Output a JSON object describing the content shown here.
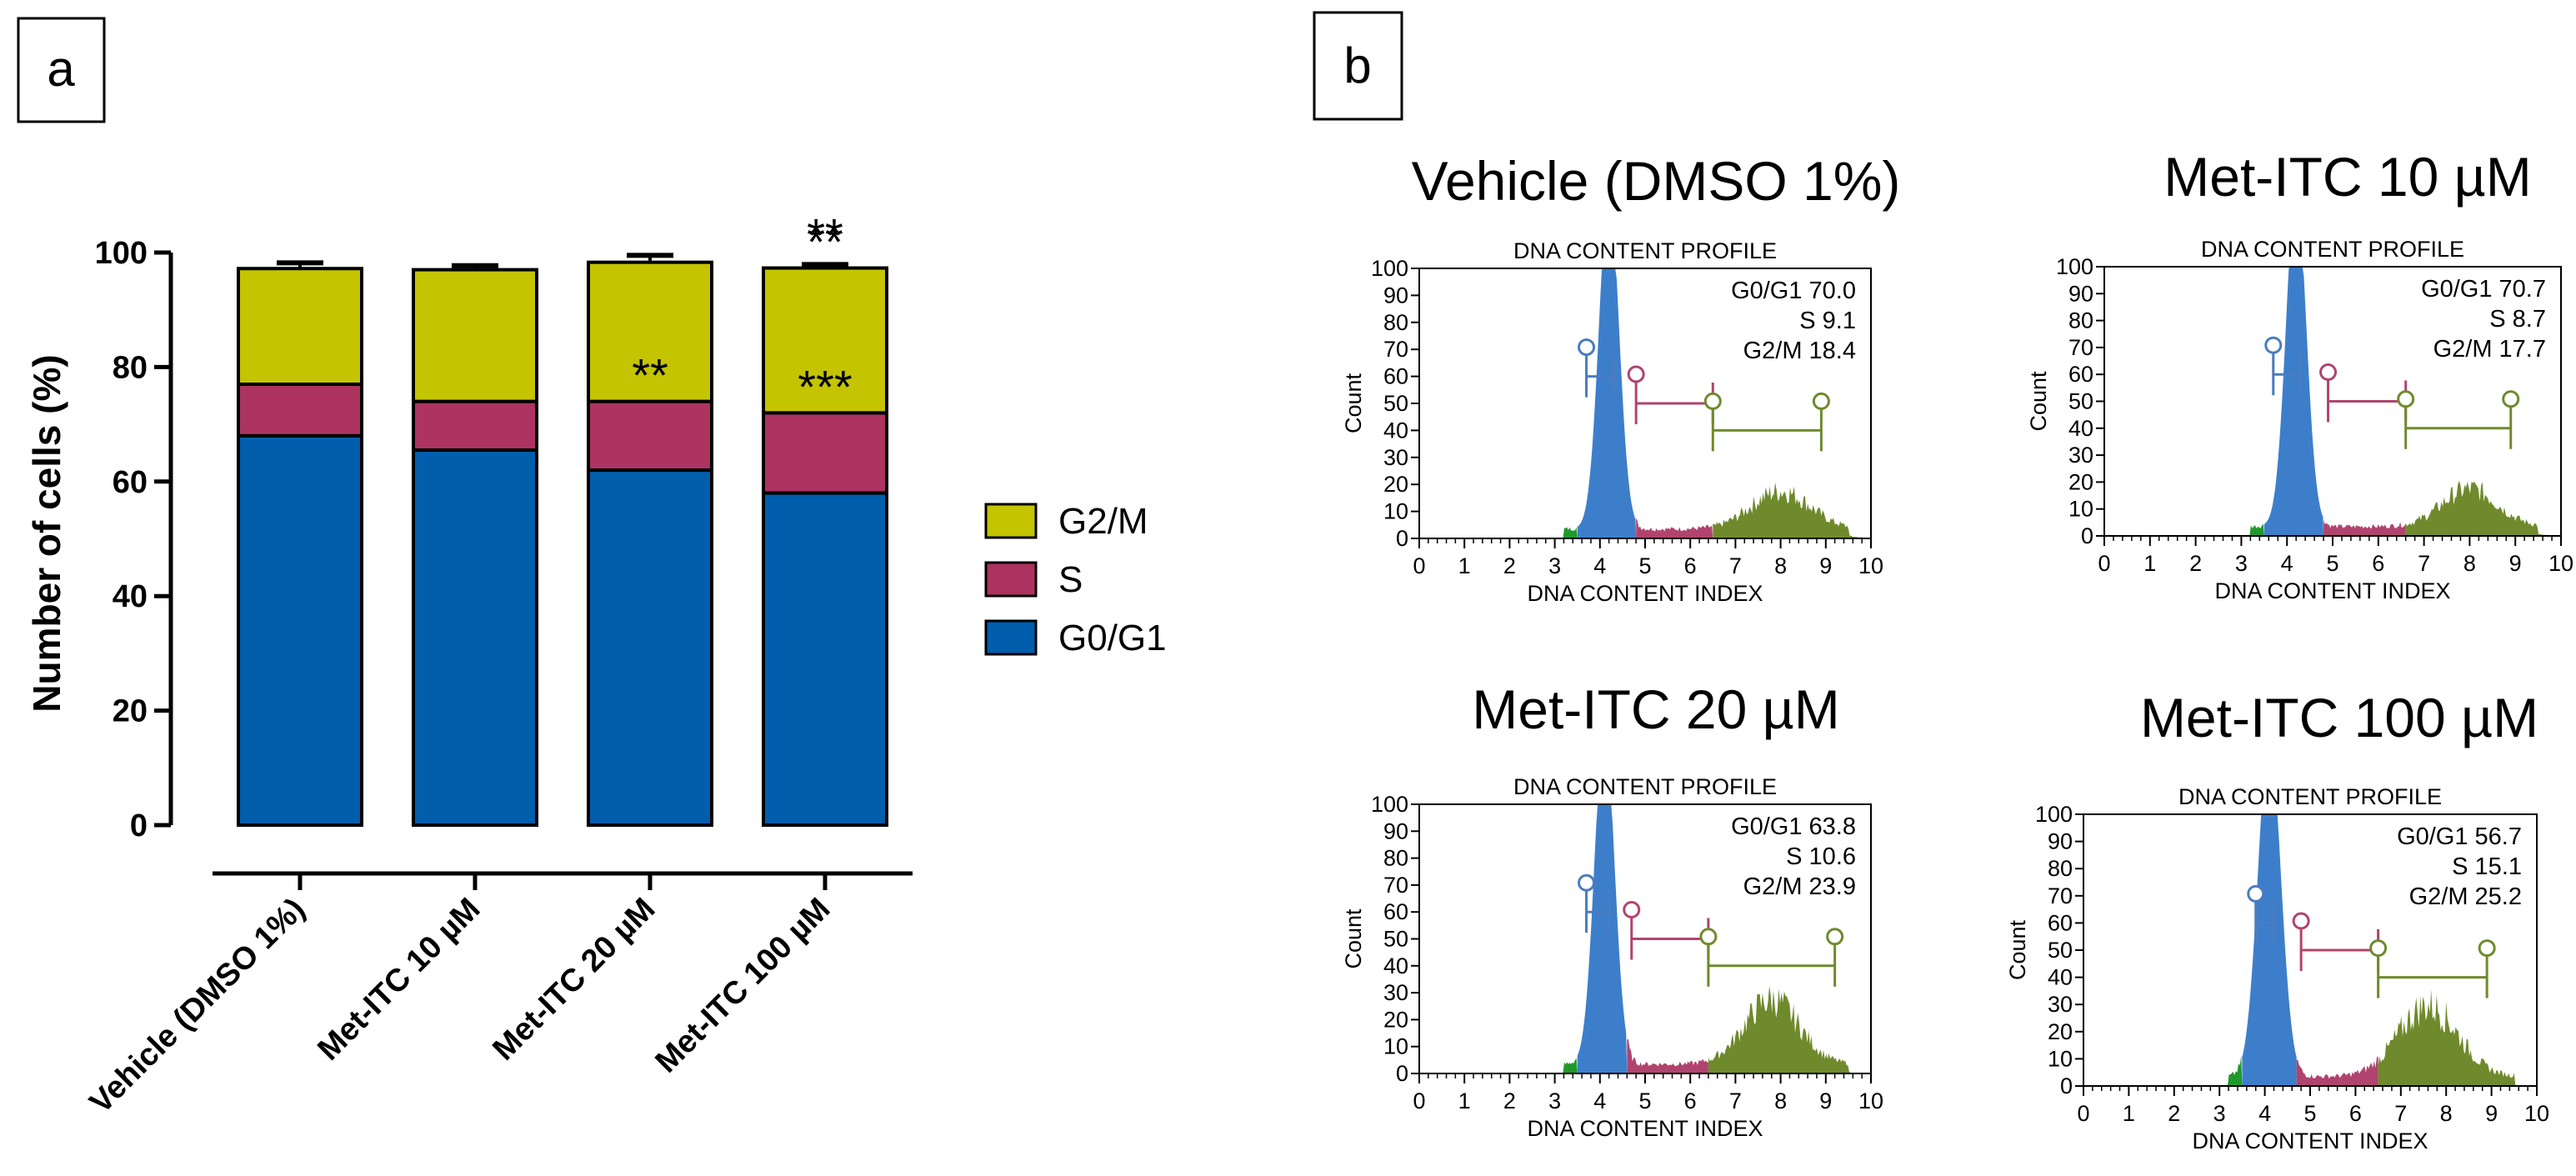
{
  "panels": {
    "a": "a",
    "b": "b"
  },
  "colors": {
    "g0g1": "#005eac",
    "s": "#ad3360",
    "g2m": "#c4c400",
    "hist_g0g1": "#3d7ecb",
    "hist_s": "#b0446e",
    "hist_g2m": "#6f8a2c",
    "hist_debris": "#1f9a2a"
  },
  "chart_data": [
    {
      "type": "bar",
      "stacked": true,
      "ylabel": "Number of cells (%)",
      "ylim": [
        0,
        100
      ],
      "yticks": [
        "0",
        "20",
        "40",
        "60",
        "80",
        "100"
      ],
      "categories": [
        "Vehicle (DMSO 1%)",
        "Met-ITC 10 µM",
        "Met-ITC 20 µM",
        "Met-ITC 100 µM"
      ],
      "series": [
        {
          "name": "G0/G1",
          "values": [
            68,
            65.5,
            62,
            58
          ],
          "errors": [
            1.2,
            0.6,
            1.5,
            0.8
          ]
        },
        {
          "name": "S",
          "values": [
            9,
            8.5,
            12,
            14
          ],
          "errors": [
            0.5,
            0.7,
            0.8,
            1.0
          ]
        },
        {
          "name": "G2/M",
          "values": [
            20.2,
            23,
            24.3,
            25.3
          ],
          "errors": [
            1.0,
            0.7,
            1.2,
            0.6
          ]
        }
      ],
      "legend": [
        "G2/M",
        "S",
        "G0/G1"
      ],
      "annotations": [
        {
          "category": 2,
          "series": "S",
          "text": "**"
        },
        {
          "category": 3,
          "series": "G2/M",
          "text": "**"
        },
        {
          "category": 3,
          "series": "S",
          "text": "***"
        },
        {
          "category": 3,
          "series": "top",
          "text": "**"
        }
      ]
    },
    {
      "type": "area",
      "title": "Vehicle (DMSO 1%)",
      "subtitle": "DNA CONTENT PROFILE",
      "xlabel": "DNA CONTENT INDEX",
      "ylabel": "Count",
      "xlim": [
        0,
        10
      ],
      "ylim": [
        0,
        100
      ],
      "xticks": [
        "0",
        "1",
        "2",
        "3",
        "4",
        "5",
        "6",
        "7",
        "8",
        "9",
        "10"
      ],
      "yticks": [
        "0",
        "10",
        "20",
        "30",
        "40",
        "50",
        "60",
        "70",
        "80",
        "90",
        "100"
      ],
      "stats": [
        "G0/G1 70.0",
        "S 9.1",
        "G2/M 18.4"
      ],
      "g0g1": {
        "center": 4.2,
        "width": 0.22,
        "peak": 100,
        "end": 4.8
      },
      "s_end": 6.5,
      "g2m": {
        "center": 8.0,
        "width": 0.65,
        "peak": 14
      },
      "markers": {
        "g0g1": [
          3.7,
          4.3
        ],
        "s": [
          4.8,
          6.5
        ],
        "g2m": [
          6.5,
          8.9
        ]
      }
    },
    {
      "type": "area",
      "title": "Met-ITC 10 µM",
      "subtitle": "DNA CONTENT PROFILE",
      "xlabel": "DNA CONTENT INDEX",
      "ylabel": "Count",
      "xlim": [
        0,
        10
      ],
      "ylim": [
        0,
        100
      ],
      "xticks": [
        "0",
        "1",
        "2",
        "3",
        "4",
        "5",
        "6",
        "7",
        "8",
        "9",
        "10"
      ],
      "yticks": [
        "0",
        "10",
        "20",
        "30",
        "40",
        "50",
        "60",
        "70",
        "80",
        "90",
        "100"
      ],
      "stats": [
        "G0/G1 70.7",
        "S 8.7",
        "G2/M 17.7"
      ],
      "g0g1": {
        "center": 4.2,
        "width": 0.22,
        "peak": 100,
        "end": 4.8
      },
      "s_end": 6.6,
      "g2m": {
        "center": 8.0,
        "width": 0.6,
        "peak": 14
      },
      "markers": {
        "g0g1": [
          3.7,
          4.3
        ],
        "s": [
          4.9,
          6.6
        ],
        "g2m": [
          6.6,
          8.9
        ]
      }
    },
    {
      "type": "area",
      "title": "Met-ITC 20 µM",
      "subtitle": "DNA CONTENT PROFILE",
      "xlabel": "DNA CONTENT INDEX",
      "ylabel": "Count",
      "xlim": [
        0,
        10
      ],
      "ylim": [
        0,
        100
      ],
      "xticks": [
        "0",
        "1",
        "2",
        "3",
        "4",
        "5",
        "6",
        "7",
        "8",
        "9",
        "10"
      ],
      "yticks": [
        "0",
        "10",
        "20",
        "30",
        "40",
        "50",
        "60",
        "70",
        "80",
        "90",
        "100"
      ],
      "stats": [
        "G0/G1 63.8",
        "S 10.6",
        "G2/M 23.9"
      ],
      "g0g1": {
        "center": 4.1,
        "width": 0.22,
        "peak": 100,
        "end": 4.6
      },
      "s_end": 6.4,
      "g2m": {
        "center": 7.8,
        "width": 0.6,
        "peak": 24
      },
      "markers": {
        "g0g1": [
          3.7,
          4.2
        ],
        "s": [
          4.7,
          6.4
        ],
        "g2m": [
          6.4,
          9.2
        ]
      }
    },
    {
      "type": "area",
      "title": "Met-ITC 100 µM",
      "subtitle": "DNA CONTENT PROFILE",
      "xlabel": "DNA CONTENT INDEX",
      "ylabel": "Count",
      "xlim": [
        0,
        10
      ],
      "ylim": [
        0,
        100
      ],
      "xticks": [
        "0",
        "1",
        "2",
        "3",
        "4",
        "5",
        "6",
        "7",
        "8",
        "9",
        "10"
      ],
      "yticks": [
        "0",
        "10",
        "20",
        "30",
        "40",
        "50",
        "60",
        "70",
        "80",
        "90",
        "100"
      ],
      "stats": [
        "G0/G1 56.7",
        "S 15.1",
        "G2/M 25.2"
      ],
      "g0g1": {
        "center": 4.1,
        "width": 0.25,
        "peak": 100,
        "end": 4.7
      },
      "s_end": 6.5,
      "g2m": {
        "center": 7.6,
        "width": 0.65,
        "peak": 26
      },
      "markers": {
        "g0g1": [
          3.8,
          4.2
        ],
        "s": [
          4.8,
          6.5
        ],
        "g2m": [
          6.5,
          8.9
        ]
      }
    }
  ]
}
